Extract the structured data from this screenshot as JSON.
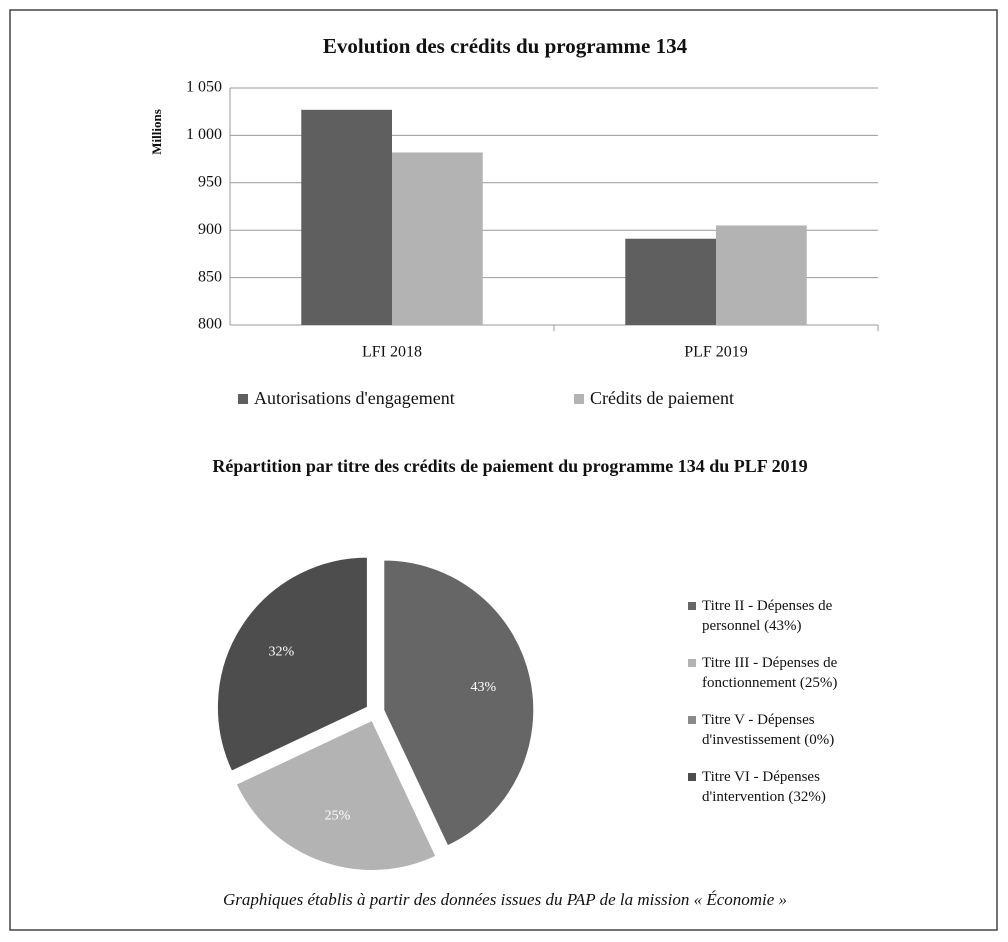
{
  "chart_data": [
    {
      "type": "bar",
      "title": "Evolution des crédits du programme 134",
      "y_label": "Millions",
      "categories": [
        "LFI 2018",
        "PLF 2019"
      ],
      "series": [
        {
          "name": "Autorisations d'engagement",
          "color": "#5f5f5f",
          "values": [
            1027,
            891
          ]
        },
        {
          "name": "Crédits de paiement",
          "color": "#b3b3b3",
          "values": [
            982,
            905
          ]
        }
      ],
      "ylim": [
        800,
        1050
      ],
      "yticks": [
        800,
        850,
        900,
        950,
        {
          "value": 1000,
          "label": "1 000"
        },
        {
          "value": 1050,
          "label": "1 050"
        }
      ],
      "grid": true,
      "legend": "bottom"
    },
    {
      "type": "pie",
      "title": "Répartition par titre des crédits de paiement du programme 134 du PLF 2019",
      "categories": [
        "Titre II - Dépenses de personnel (43%)",
        "Titre III - Dépenses de fonctionnement (25%)",
        "Titre V - Dépenses d'investissement (0%)",
        "Titre VI - Dépenses d'intervention (32%)"
      ],
      "values": [
        43,
        25,
        0,
        32
      ],
      "value_labels": [
        "43%",
        "25%",
        null,
        "32%"
      ],
      "colors": [
        "#666666",
        "#b3b3b3",
        "#8a8a8a",
        "#4d4d4d"
      ],
      "legend": "right"
    }
  ],
  "caption": "Graphiques établis à partir des données issues du PAP de la mission « Économie »"
}
